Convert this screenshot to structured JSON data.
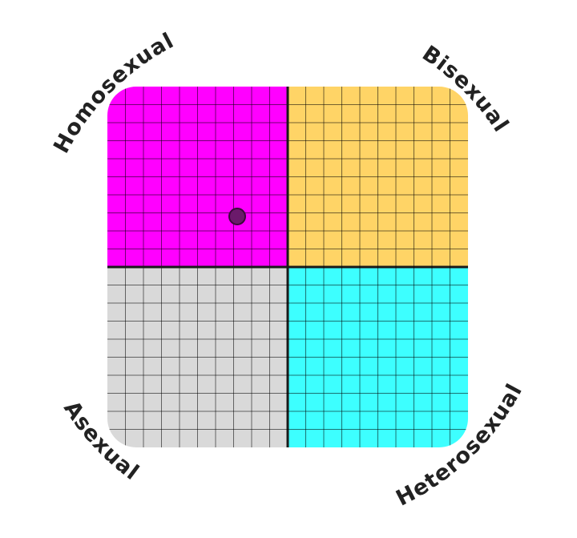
{
  "chart_data": {
    "type": "scatter",
    "xlim": [
      -10,
      10
    ],
    "ylim": [
      -10,
      10
    ],
    "grid": true,
    "grid_divisions_per_axis": 20,
    "quadrants": [
      {
        "label": "Homosexual",
        "position": "top-left",
        "color": "#ff00ff"
      },
      {
        "label": "Bisexual",
        "position": "top-right",
        "color": "#ffd466"
      },
      {
        "label": "Asexual",
        "position": "bottom-left",
        "color": "#d9d9d9"
      },
      {
        "label": "Heterosexual",
        "position": "bottom-right",
        "color": "#3dffff"
      }
    ],
    "points": [
      {
        "x": -2.8,
        "y": 2.8,
        "color": "#6b1a6b"
      }
    ]
  }
}
